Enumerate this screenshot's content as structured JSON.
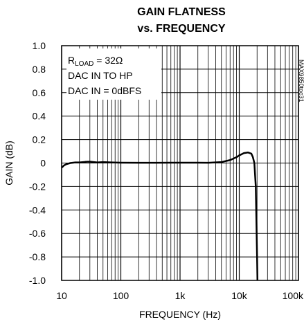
{
  "chart_data": {
    "type": "line",
    "title_line1": "GAIN FLATNESS",
    "title_line2": "vs. FREQUENCY",
    "xlabel": "FREQUENCY (Hz)",
    "ylabel": "GAIN (dB)",
    "x_scale": "log",
    "xlim": [
      10,
      100000
    ],
    "ylim": [
      -1.0,
      1.0
    ],
    "x_tick_labels": [
      {
        "value": 10,
        "label": "10"
      },
      {
        "value": 100,
        "label": "100"
      },
      {
        "value": 1000,
        "label": "1k"
      },
      {
        "value": 10000,
        "label": "10k"
      },
      {
        "value": 100000,
        "label": "100k"
      }
    ],
    "y_tick_labels": [
      {
        "value": 1.0,
        "label": "1.0"
      },
      {
        "value": 0.8,
        "label": "0.8"
      },
      {
        "value": 0.6,
        "label": "0.6"
      },
      {
        "value": 0.4,
        "label": "0.4"
      },
      {
        "value": 0.2,
        "label": "0.2"
      },
      {
        "value": 0,
        "label": "0"
      },
      {
        "value": -0.2,
        "label": "-0.2"
      },
      {
        "value": -0.4,
        "label": "-0.4"
      },
      {
        "value": -0.6,
        "label": "-0.6"
      },
      {
        "value": -0.8,
        "label": "-0.8"
      },
      {
        "value": -1.0,
        "label": "-1.0"
      }
    ],
    "grid": true,
    "annotations": {
      "line1_main": "R",
      "line1_sub": "LOAD",
      "line1_rest": " = 32Ω",
      "line2": "DAC IN TO HP",
      "line3": "DAC IN = 0dBFS"
    },
    "side_code": "MAX9850toc31",
    "series": [
      {
        "color": "#000000",
        "points": [
          [
            10,
            -0.04
          ],
          [
            11,
            -0.02
          ],
          [
            12,
            -0.01
          ],
          [
            14,
            0.0
          ],
          [
            17,
            0.005
          ],
          [
            20,
            0.005
          ],
          [
            25,
            0.01
          ],
          [
            30,
            0.012
          ],
          [
            40,
            0.005
          ],
          [
            50,
            0.008
          ],
          [
            70,
            0.005
          ],
          [
            100,
            0.003
          ],
          [
            200,
            0.002
          ],
          [
            400,
            0.002
          ],
          [
            700,
            0.003
          ],
          [
            1000,
            0.003
          ],
          [
            2000,
            0.003
          ],
          [
            3000,
            0.002
          ],
          [
            5000,
            0.008
          ],
          [
            7000,
            0.025
          ],
          [
            9000,
            0.05
          ],
          [
            10000,
            0.065
          ],
          [
            12000,
            0.085
          ],
          [
            14000,
            0.09
          ],
          [
            16000,
            0.08
          ],
          [
            17000,
            0.05
          ],
          [
            18000,
            0.0
          ],
          [
            19000,
            -0.2
          ],
          [
            19500,
            -0.5
          ],
          [
            20000,
            -0.8
          ],
          [
            20300,
            -1.0
          ]
        ]
      }
    ]
  }
}
